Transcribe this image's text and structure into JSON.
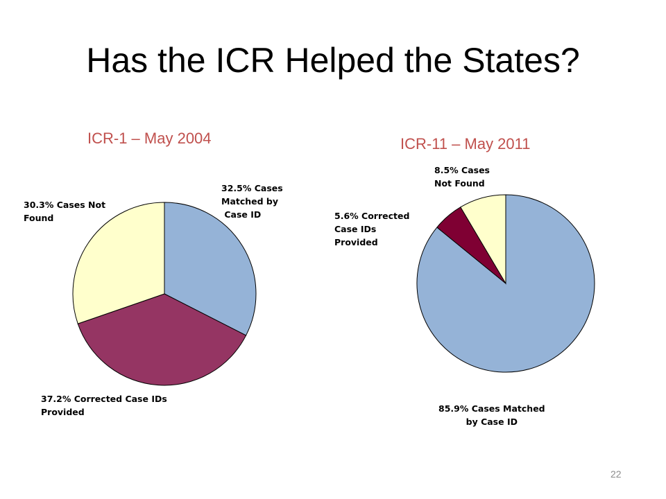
{
  "slide": {
    "title": "Has the ICR Helped the States?",
    "page_number": "22"
  },
  "colors": {
    "chart_title": "#c0504d",
    "outline": "#000000"
  },
  "chart_data": [
    {
      "type": "pie",
      "title": "ICR-1 – May 2004",
      "slices": [
        {
          "value": 32.5,
          "color": "#95b3d7",
          "label": [
            "32.5% Cases",
            "Matched by",
            " Case ID"
          ]
        },
        {
          "value": 37.2,
          "color": "#953563",
          "label": [
            "37.2% Corrected Case IDs",
            "Provided"
          ]
        },
        {
          "value": 30.3,
          "color": "#ffffcc",
          "label": [
            "30.3% Cases Not",
            "Found"
          ]
        }
      ]
    },
    {
      "type": "pie",
      "title": "ICR-11 – May 2011",
      "slices": [
        {
          "value": 85.9,
          "color": "#95b3d7",
          "label": [
            "85.9% Cases Matched",
            "by Case ID"
          ]
        },
        {
          "value": 5.6,
          "color": "#7f0033",
          "label": [
            "5.6% Corrected",
            "Case IDs",
            "Provided"
          ]
        },
        {
          "value": 8.5,
          "color": "#ffffcc",
          "label": [
            "8.5% Cases",
            "Not Found"
          ]
        }
      ]
    }
  ]
}
